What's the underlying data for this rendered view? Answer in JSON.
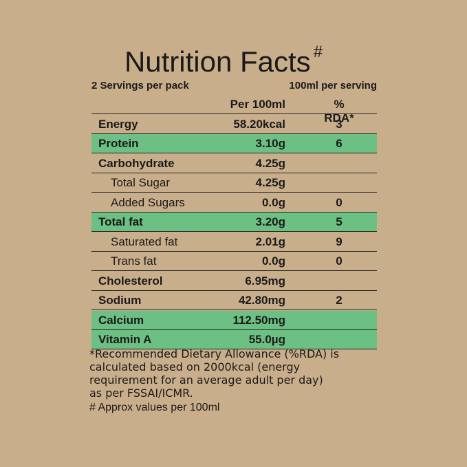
{
  "header": {
    "title": "Nutrition Facts",
    "title_mark": "#",
    "servings": "2 Servings per pack",
    "serving_size": "100ml per serving"
  },
  "table": {
    "columns": [
      "Per 100ml",
      "% RDA*"
    ],
    "rows": [
      {
        "name": "Energy",
        "amount": "58.20kcal",
        "rda": "3"
      },
      {
        "name": "Protein",
        "amount": "3.10g",
        "rda": "6",
        "highlight": true
      },
      {
        "name": "Carbohydrate",
        "amount": "4.25g"
      },
      {
        "name": "Total Sugar",
        "amount": "4.25g",
        "indent": true
      },
      {
        "name": "Added Sugars",
        "amount": "0.0g",
        "rda": "0",
        "indent": true
      },
      {
        "name": "Total fat",
        "amount": "3.20g",
        "rda": "5",
        "highlight": true
      },
      {
        "name": "Saturated fat",
        "amount": "2.01g",
        "rda": "9",
        "indent": true
      },
      {
        "name": "Trans fat",
        "amount": "0.0g",
        "rda": "0",
        "indent": true
      },
      {
        "name": "Cholesterol",
        "amount": "6.95mg"
      },
      {
        "name": "Sodium",
        "amount": "42.80mg",
        "rda": "2"
      },
      {
        "name": "Calcium",
        "amount": "112.50mg",
        "highlight": true
      },
      {
        "name": "Vitamin A",
        "amount": "55.0µg",
        "highlight": true
      }
    ]
  },
  "footnotes": [
    "*Recommended Dietary Allowance (%RDA) is",
    "calculated based on 2000kcal (energy",
    "requirement for an average adult per day)",
    "as per FSSAI/ICMR.",
    "# Approx values per 100ml"
  ]
}
